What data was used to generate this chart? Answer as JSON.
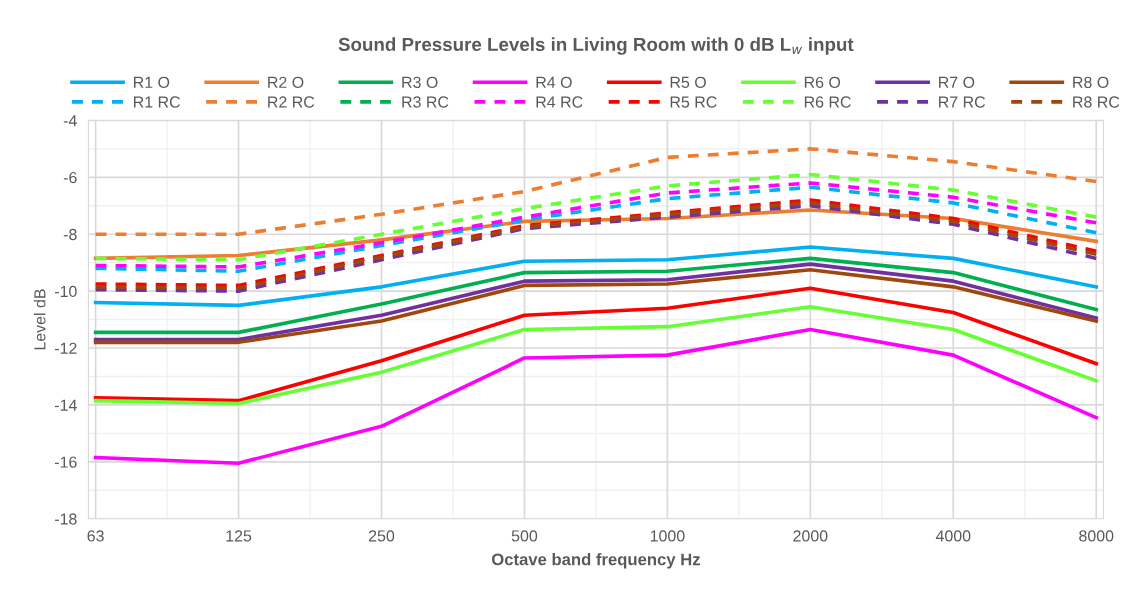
{
  "chart_data": {
    "type": "line",
    "title": "Sound Pressure Levels in Living Room with 0 dB L$_{w}$ input",
    "xlabel": "Octave band frequency Hz",
    "ylabel": "Level dB",
    "categories": [
      "63",
      "125",
      "250",
      "500",
      "1000",
      "2000",
      "4000",
      "8000"
    ],
    "ylim": [
      -18,
      -4
    ],
    "yticks": [
      -18,
      -16,
      -14,
      -12,
      -10,
      -8,
      -6,
      -4
    ],
    "grid": true,
    "legend": "top",
    "marker": "none",
    "series": [
      {
        "name": "R1 O",
        "color": "#00b0f0",
        "line_style": "solid",
        "values": [
          -10.4,
          -10.5,
          -9.85,
          -8.95,
          -8.9,
          -8.45,
          -8.85,
          -9.85
        ]
      },
      {
        "name": "R2 O",
        "color": "#ed7d31",
        "line_style": "solid",
        "values": [
          -8.85,
          -8.75,
          -8.2,
          -7.55,
          -7.45,
          -7.15,
          -7.45,
          -8.25
        ]
      },
      {
        "name": "R3 O",
        "color": "#00b050",
        "line_style": "solid",
        "values": [
          -11.45,
          -11.45,
          -10.45,
          -9.35,
          -9.3,
          -8.85,
          -9.35,
          -10.65
        ]
      },
      {
        "name": "R4 O",
        "color": "#ff00ff",
        "line_style": "solid",
        "values": [
          -15.85,
          -16.05,
          -14.75,
          -12.35,
          -12.25,
          -11.35,
          -12.25,
          -14.45
        ]
      },
      {
        "name": "R5 O",
        "color": "#ff0000",
        "line_style": "solid",
        "values": [
          -13.75,
          -13.85,
          -12.45,
          -10.85,
          -10.6,
          -9.9,
          -10.75,
          -12.55
        ]
      },
      {
        "name": "R6 O",
        "color": "#66ff33",
        "line_style": "solid",
        "values": [
          -13.85,
          -13.95,
          -12.85,
          -11.35,
          -11.25,
          -10.55,
          -11.35,
          -13.15
        ]
      },
      {
        "name": "R7 O",
        "color": "#7030a0",
        "line_style": "solid",
        "values": [
          -11.7,
          -11.7,
          -10.85,
          -9.65,
          -9.6,
          -9.05,
          -9.65,
          -10.95
        ]
      },
      {
        "name": "R8 O",
        "color": "#9e480e",
        "line_style": "solid",
        "values": [
          -11.8,
          -11.8,
          -11.05,
          -9.8,
          -9.75,
          -9.25,
          -9.85,
          -11.05
        ]
      },
      {
        "name": "R1 RC",
        "color": "#00b0f0",
        "line_style": "dashed",
        "values": [
          -9.2,
          -9.3,
          -8.4,
          -7.5,
          -6.75,
          -6.35,
          -6.9,
          -7.95
        ]
      },
      {
        "name": "R2 RC",
        "color": "#ed7d31",
        "line_style": "dashed",
        "values": [
          -8.0,
          -8.0,
          -7.3,
          -6.5,
          -5.3,
          -5.0,
          -5.45,
          -6.15
        ]
      },
      {
        "name": "R3 RC",
        "color": "#00b050",
        "line_style": "dashed",
        "values": [
          null,
          null,
          null,
          null,
          null,
          null,
          null,
          null
        ]
      },
      {
        "name": "R4 RC",
        "color": "#ff00ff",
        "line_style": "dashed",
        "values": [
          -9.1,
          -9.15,
          -8.3,
          -7.4,
          -6.55,
          -6.2,
          -6.7,
          -7.6
        ]
      },
      {
        "name": "R5 RC",
        "color": "#ff0000",
        "line_style": "dashed",
        "values": [
          -9.75,
          -9.8,
          -8.75,
          -7.7,
          -7.25,
          -6.8,
          -7.45,
          -8.6
        ]
      },
      {
        "name": "R6 RC",
        "color": "#66ff33",
        "line_style": "dashed",
        "values": [
          -8.85,
          -8.9,
          -8.0,
          -7.1,
          -6.3,
          -5.9,
          -6.45,
          -7.4
        ]
      },
      {
        "name": "R7 RC",
        "color": "#7030a0",
        "line_style": "dashed",
        "values": [
          -9.95,
          -10.0,
          -8.9,
          -7.8,
          -7.4,
          -7.0,
          -7.65,
          -8.85
        ]
      },
      {
        "name": "R8 RC",
        "color": "#9e480e",
        "line_style": "dashed",
        "values": [
          -9.85,
          -9.9,
          -8.8,
          -7.75,
          -7.3,
          -6.9,
          -7.55,
          -8.7
        ]
      }
    ]
  }
}
